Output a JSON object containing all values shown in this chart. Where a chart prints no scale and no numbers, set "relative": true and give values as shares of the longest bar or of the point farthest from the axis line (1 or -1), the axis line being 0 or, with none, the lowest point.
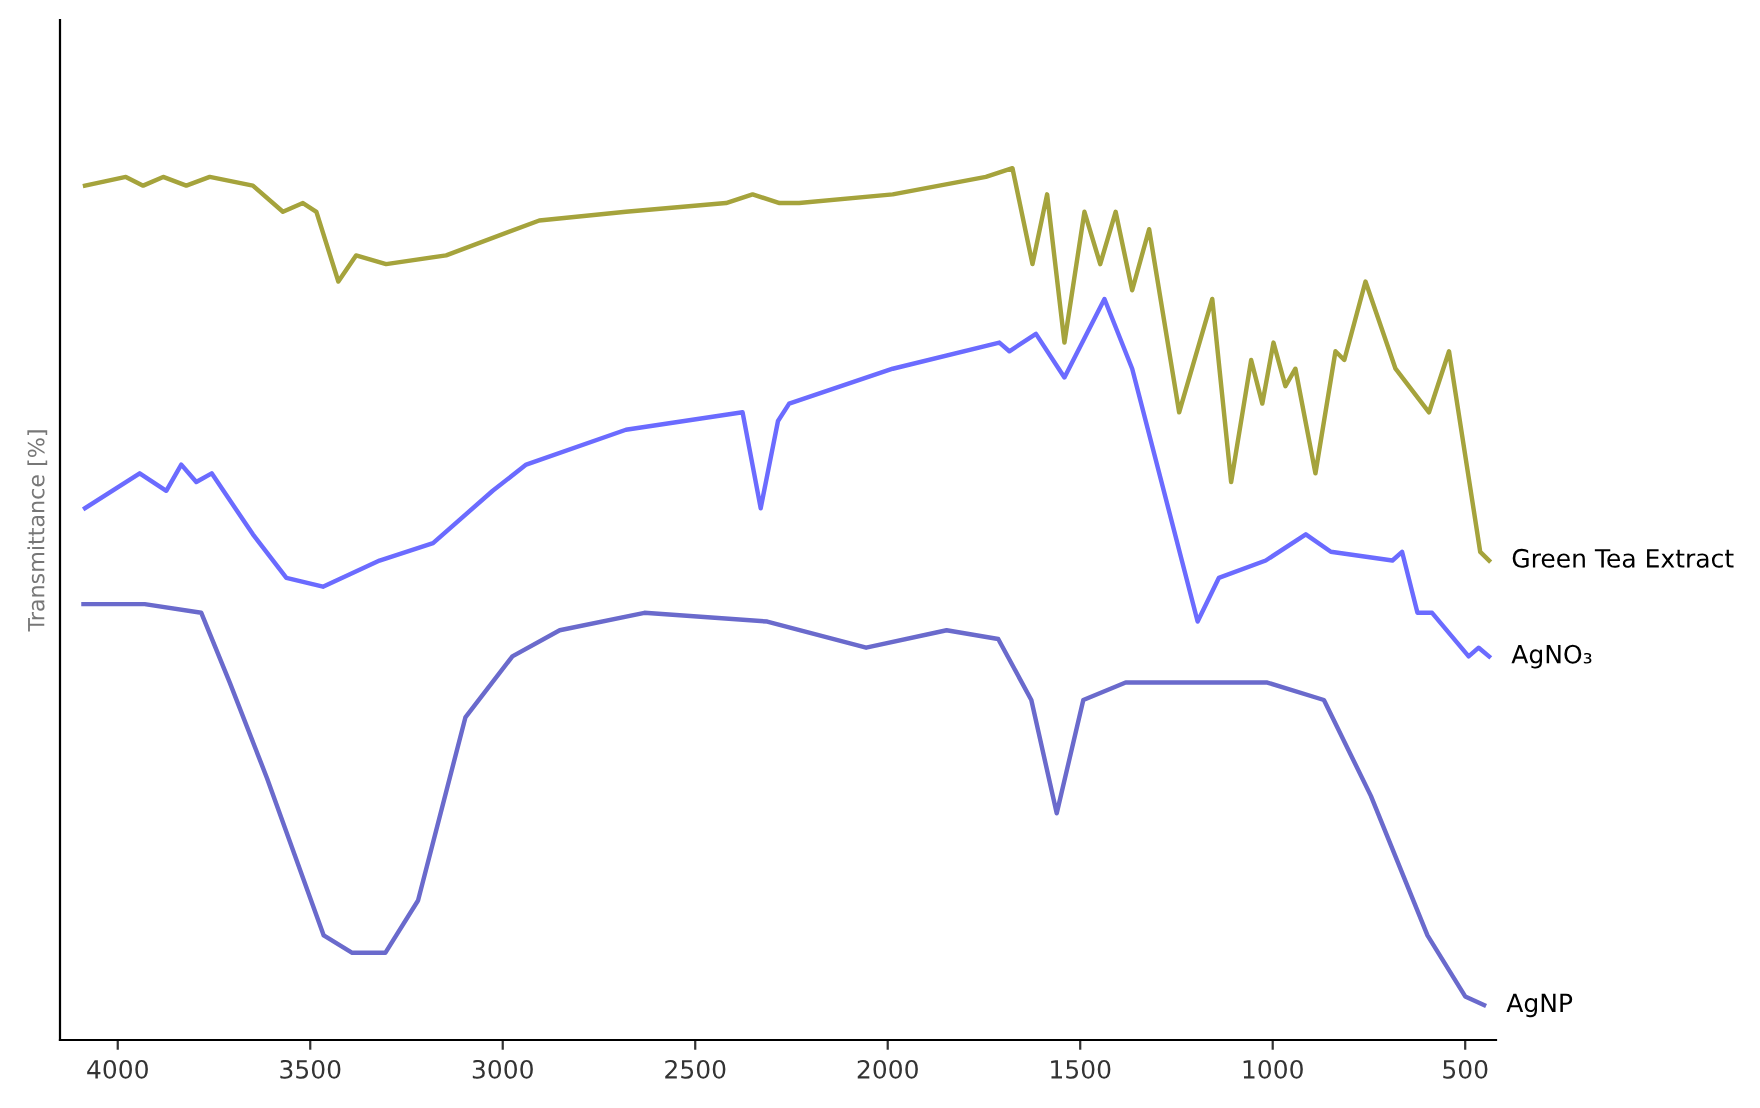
{
  "chart_data": {
    "type": "line",
    "relative": true,
    "ylabel": "Transmittance [%]",
    "xlim": [
      4150,
      420
    ],
    "xticks": [
      4000,
      3500,
      3000,
      2500,
      2000,
      1500,
      1000,
      500
    ],
    "grid": false,
    "legend": false,
    "marker": "none",
    "line_style": "solid",
    "series": [
      {
        "name": "Green Tea Extract",
        "color": "#a5a33c",
        "x": [
          4085,
          3979,
          3934,
          3882,
          3822,
          3761,
          3649,
          3571,
          3519,
          3484,
          3427,
          3381,
          3303,
          3147,
          2905,
          2680,
          2420,
          2351,
          2281,
          2230,
          1987,
          1745,
          1676,
          1624,
          1586,
          1541,
          1489,
          1448,
          1408,
          1365,
          1321,
          1243,
          1157,
          1108,
          1056,
          1027,
          998,
          967,
          941,
          889,
          837,
          814,
          759,
          681,
          594,
          542,
          461,
          438
        ],
        "values": [
          0.98,
          0.99,
          0.98,
          0.99,
          0.98,
          0.99,
          0.98,
          0.95,
          0.96,
          0.95,
          0.87,
          0.9,
          0.89,
          0.9,
          0.94,
          0.95,
          0.96,
          0.97,
          0.96,
          0.96,
          0.97,
          0.99,
          1.0,
          0.89,
          0.97,
          0.8,
          0.95,
          0.89,
          0.95,
          0.86,
          0.93,
          0.72,
          0.85,
          0.64,
          0.78,
          0.73,
          0.8,
          0.75,
          0.77,
          0.65,
          0.79,
          0.78,
          0.87,
          0.77,
          0.72,
          0.79,
          0.56,
          0.55
        ]
      },
      {
        "name": "AgNO₃",
        "color": "#6b6bff",
        "x": [
          4085,
          3943,
          3874,
          3835,
          3796,
          3756,
          3649,
          3562,
          3467,
          3320,
          3181,
          3026,
          2939,
          2680,
          2377,
          2330,
          2285,
          2256,
          1987,
          1710,
          1684,
          1615,
          1541,
          1437,
          1365,
          1195,
          1140,
          1018,
          914,
          849,
          689,
          664,
          624,
          586,
          491,
          465,
          438
        ],
        "values": [
          0.61,
          0.65,
          0.63,
          0.66,
          0.64,
          0.65,
          0.58,
          0.53,
          0.52,
          0.55,
          0.57,
          0.63,
          0.66,
          0.7,
          0.72,
          0.61,
          0.71,
          0.73,
          0.77,
          0.8,
          0.79,
          0.81,
          0.76,
          0.85,
          0.77,
          0.48,
          0.53,
          0.55,
          0.58,
          0.56,
          0.55,
          0.56,
          0.49,
          0.49,
          0.44,
          0.45,
          0.44
        ]
      },
      {
        "name": "AgNP",
        "color": "#6a6acc",
        "x": [
          4089,
          3930,
          3783,
          3709,
          3612,
          3465,
          3391,
          3305,
          3220,
          3097,
          2975,
          2852,
          2632,
          2313,
          2056,
          1847,
          1713,
          1627,
          1561,
          1492,
          1382,
          1014,
          867,
          745,
          598,
          500,
          451
        ],
        "values": [
          0.5,
          0.5,
          0.49,
          0.41,
          0.3,
          0.12,
          0.1,
          0.1,
          0.16,
          0.37,
          0.44,
          0.47,
          0.49,
          0.48,
          0.45,
          0.47,
          0.46,
          0.39,
          0.26,
          0.39,
          0.41,
          0.41,
          0.39,
          0.28,
          0.12,
          0.05,
          0.04
        ]
      }
    ]
  }
}
